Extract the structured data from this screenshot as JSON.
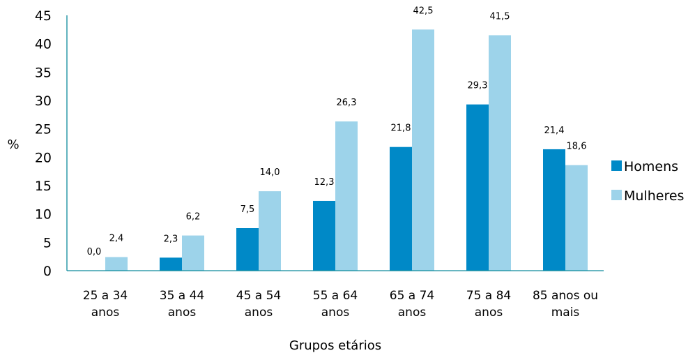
{
  "chart_data": {
    "type": "bar",
    "title": "",
    "xlabel": "Grupos etários",
    "ylabel": "%",
    "ylim": [
      0,
      45
    ],
    "yticks": [
      0,
      5,
      10,
      15,
      20,
      25,
      30,
      35,
      40,
      45
    ],
    "categories": [
      [
        "25 a 34",
        "anos"
      ],
      [
        "35 a 44",
        "anos"
      ],
      [
        "45 a 54",
        "anos"
      ],
      [
        "55 a 64",
        "anos"
      ],
      [
        "65 a 74",
        "anos"
      ],
      [
        "75 a 84",
        "anos"
      ],
      [
        "85 anos ou",
        "mais"
      ]
    ],
    "series": [
      {
        "name": "Homens",
        "color": "#0089c7",
        "values": [
          0.0,
          2.3,
          7.5,
          12.3,
          21.8,
          29.3,
          21.4
        ],
        "labels": [
          "0,0",
          "2,3",
          "7,5",
          "12,3",
          "21,8",
          "29,3",
          "21,4"
        ]
      },
      {
        "name": "Mulheres",
        "color": "#9dd3ea",
        "values": [
          2.4,
          6.2,
          14.0,
          26.3,
          42.5,
          41.5,
          18.6
        ],
        "labels": [
          "2,4",
          "6,2",
          "14,0",
          "26,3",
          "42,5",
          "41,5",
          "18,6"
        ]
      }
    ],
    "grid": false,
    "legend_position": "right"
  }
}
